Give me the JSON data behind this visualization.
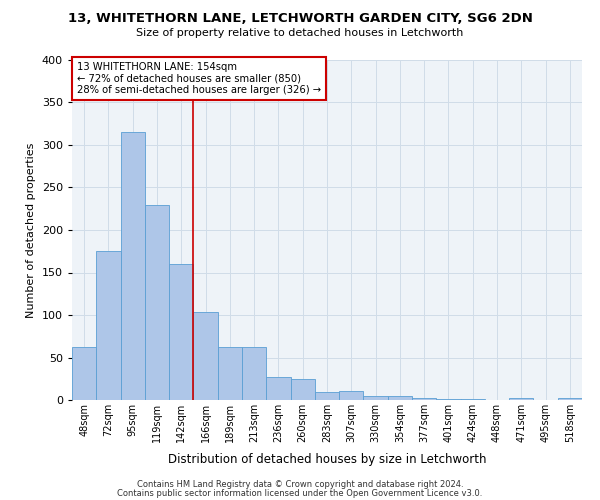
{
  "title": "13, WHITETHORN LANE, LETCHWORTH GARDEN CITY, SG6 2DN",
  "subtitle": "Size of property relative to detached houses in Letchworth",
  "xlabel": "Distribution of detached houses by size in Letchworth",
  "ylabel": "Number of detached properties",
  "bin_labels": [
    "48sqm",
    "72sqm",
    "95sqm",
    "119sqm",
    "142sqm",
    "166sqm",
    "189sqm",
    "213sqm",
    "236sqm",
    "260sqm",
    "283sqm",
    "307sqm",
    "330sqm",
    "354sqm",
    "377sqm",
    "401sqm",
    "424sqm",
    "448sqm",
    "471sqm",
    "495sqm",
    "518sqm"
  ],
  "bar_values": [
    62,
    175,
    315,
    229,
    160,
    103,
    62,
    62,
    27,
    25,
    10,
    11,
    5,
    5,
    2,
    1,
    1,
    0,
    2,
    0,
    2
  ],
  "bar_color": "#aec6e8",
  "bar_edge_color": "#5a9fd4",
  "vline_x": 4.5,
  "annotation_title": "13 WHITETHORN LANE: 154sqm",
  "annotation_line1": "← 72% of detached houses are smaller (850)",
  "annotation_line2": "28% of semi-detached houses are larger (326) →",
  "annotation_box_color": "#ffffff",
  "annotation_box_edge": "#cc0000",
  "vline_color": "#cc0000",
  "grid_color": "#d0dce8",
  "bg_color": "#eef3f8",
  "footnote1": "Contains HM Land Registry data © Crown copyright and database right 2024.",
  "footnote2": "Contains public sector information licensed under the Open Government Licence v3.0.",
  "ylim": [
    0,
    400
  ],
  "yticks": [
    0,
    50,
    100,
    150,
    200,
    250,
    300,
    350,
    400
  ]
}
